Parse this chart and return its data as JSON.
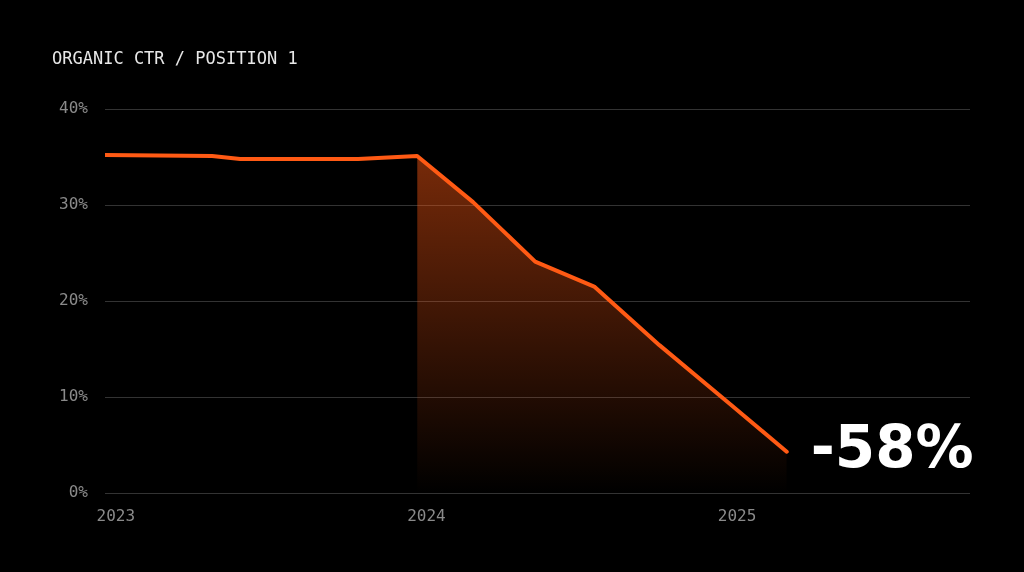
{
  "chart_data": {
    "type": "line",
    "title": "ORGANIC CTR / POSITION 1",
    "series": [
      {
        "type": "area",
        "color": "#ff5a14",
        "x": [
          2023.97,
          2024.15,
          2024.35,
          2024.54,
          2024.75,
          2024.98,
          2025.16
        ],
        "values": [
          35.1,
          30.3,
          24.1,
          21.5,
          15.4,
          9.2,
          4.3
        ]
      },
      {
        "color": "#ff5a14",
        "x": [
          2022.965,
          2023.31,
          2023.4,
          2023.78,
          2023.97,
          2024.15,
          2024.35,
          2024.54,
          2024.75,
          2024.98,
          2025.16
        ],
        "values": [
          35.2,
          35.1,
          34.8,
          34.8,
          35.1,
          30.3,
          24.1,
          21.5,
          15.4,
          9.2,
          4.3
        ]
      }
    ],
    "xlim": [
      2022.965,
      2025.75
    ],
    "xticks": [
      2023,
      2024,
      2025
    ],
    "ylim": [
      0,
      40
    ],
    "yticks": [
      {
        "value": 0,
        "label": "0%"
      },
      {
        "value": 10,
        "label": "10%"
      },
      {
        "value": 20,
        "label": "20%"
      },
      {
        "value": 30,
        "label": "30%"
      },
      {
        "value": 40,
        "label": "40%"
      }
    ],
    "grid": "y",
    "legend": false,
    "marker": "none",
    "line_style": "solid",
    "annotations": [
      {
        "text": "-58%",
        "x": 2025.16,
        "y": 4.3
      }
    ]
  }
}
